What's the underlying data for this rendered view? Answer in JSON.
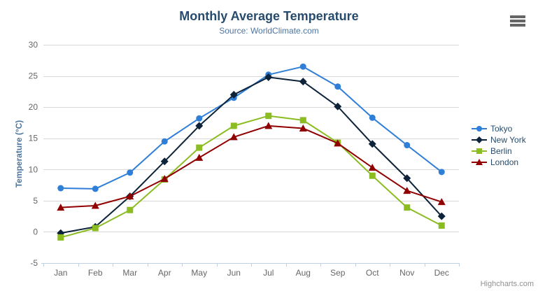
{
  "chart": {
    "credits": "Highcharts.com",
    "menu_icon": "hamburger-menu-icon"
  },
  "colors": {
    "title": "#274b6d",
    "subtitle": "#4d759e",
    "axis_title": "#4d759e",
    "axis_labels": "#666666",
    "grid_line": "#d8d8d8",
    "axis_line": "#c0d0e0",
    "legend_text": "#274b6d",
    "credits_text": "#909090",
    "menu_icon": "#666666",
    "background": "#ffffff"
  },
  "chart_data": {
    "type": "line",
    "title": "Monthly Average Temperature",
    "subtitle": "Source: WorldClimate.com",
    "xlabel": "",
    "ylabel": "Temperature (°C)",
    "ylim": [
      -5,
      30
    ],
    "ytick_interval": 5,
    "grid": true,
    "legend_position": "right",
    "categories": [
      "Jan",
      "Feb",
      "Mar",
      "Apr",
      "May",
      "Jun",
      "Jul",
      "Aug",
      "Sep",
      "Oct",
      "Nov",
      "Dec"
    ],
    "series": [
      {
        "name": "Tokyo",
        "color": "#2f7ed8",
        "marker": "circle",
        "values": [
          7.0,
          6.9,
          9.5,
          14.5,
          18.2,
          21.5,
          25.2,
          26.5,
          23.3,
          18.3,
          13.9,
          9.6
        ]
      },
      {
        "name": "New York",
        "color": "#0d233a",
        "marker": "diamond",
        "values": [
          -0.2,
          0.8,
          5.7,
          11.3,
          17.0,
          22.0,
          24.8,
          24.1,
          20.1,
          14.1,
          8.6,
          2.5
        ]
      },
      {
        "name": "Berlin",
        "color": "#8bbc21",
        "marker": "square",
        "values": [
          -0.9,
          0.6,
          3.5,
          8.4,
          13.5,
          17.0,
          18.6,
          17.9,
          14.3,
          9.0,
          3.9,
          1.0
        ]
      },
      {
        "name": "London",
        "color": "#910000",
        "marker": "triangle",
        "values": [
          3.9,
          4.2,
          5.7,
          8.5,
          11.9,
          15.2,
          17.0,
          16.6,
          14.2,
          10.3,
          6.6,
          4.8
        ]
      }
    ]
  }
}
